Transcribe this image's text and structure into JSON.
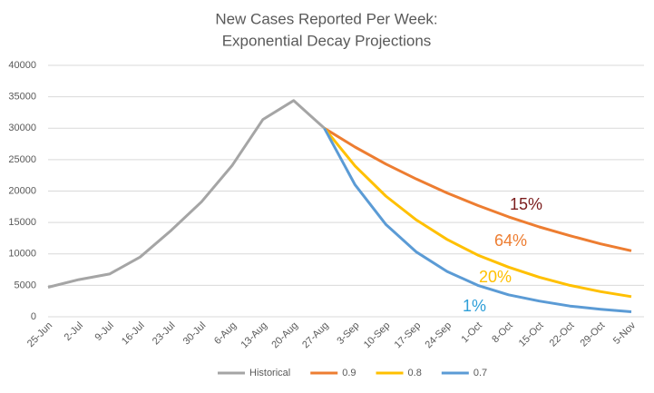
{
  "chart_data": {
    "type": "line",
    "title": [
      "New Cases Reported Per Week:",
      "Exponential Decay Projections"
    ],
    "categories": [
      "25-Jun",
      "2-Jul",
      "9-Jul",
      "16-Jul",
      "23-Jul",
      "30-Jul",
      "6-Aug",
      "13-Aug",
      "20-Aug",
      "27-Aug",
      "3-Sep",
      "10-Sep",
      "17-Sep",
      "24-Sep",
      "1-Oct",
      "8-Oct",
      "15-Oct",
      "22-Oct",
      "29-Oct",
      "5-Nov"
    ],
    "series": [
      {
        "name": "Historical",
        "color": "#a5a5a5",
        "values": [
          4700,
          5900,
          6800,
          9500,
          13700,
          18300,
          24100,
          31400,
          34400,
          30000,
          null,
          null,
          null,
          null,
          null,
          null,
          null,
          null,
          null,
          null
        ]
      },
      {
        "name": "0.9",
        "color": "#ed7d31",
        "values": [
          null,
          null,
          null,
          null,
          null,
          null,
          null,
          null,
          null,
          30000,
          27000,
          24300,
          21900,
          19700,
          17700,
          15900,
          14300,
          12900,
          11600,
          10500
        ]
      },
      {
        "name": "0.8",
        "color": "#ffc000",
        "values": [
          null,
          null,
          null,
          null,
          null,
          null,
          null,
          null,
          null,
          30000,
          24000,
          19200,
          15400,
          12300,
          9800,
          7900,
          6300,
          5000,
          4000,
          3200
        ]
      },
      {
        "name": "0.7",
        "color": "#5b9bd5",
        "values": [
          null,
          null,
          null,
          null,
          null,
          null,
          null,
          null,
          null,
          30000,
          21000,
          14700,
          10300,
          7200,
          5000,
          3500,
          2500,
          1700,
          1200,
          800
        ]
      }
    ],
    "ylim": [
      0,
      40000
    ],
    "yticks": [
      0,
      5000,
      10000,
      15000,
      20000,
      25000,
      30000,
      35000,
      40000
    ],
    "grid": true,
    "legend": "bottom",
    "annotations": [
      {
        "text": "15%",
        "color": "#7b1c1c"
      },
      {
        "text": "64%",
        "color": "#ed7d31"
      },
      {
        "text": "20%",
        "color": "#ffc000"
      },
      {
        "text": "1%",
        "color": "#2e9fd8"
      }
    ]
  }
}
